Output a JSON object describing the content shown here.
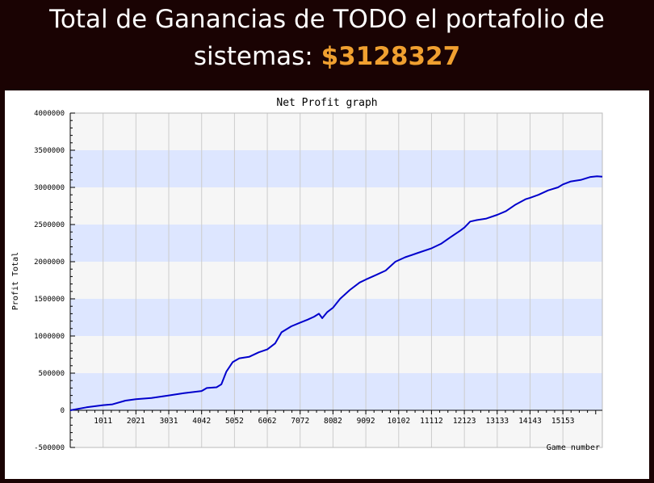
{
  "header": {
    "title_prefix": "Total de Ganancias de TODO el portafolio de",
    "title_line2_prefix": "sistemas:",
    "amount": "$3128327",
    "text_color": "#ffffff",
    "amount_color": "#f0a030",
    "background": "#1a0303"
  },
  "chart_data": {
    "type": "line",
    "title": "Net Profit graph",
    "xlabel": "Game number",
    "ylabel": "Profit Total",
    "xlim": [
      1,
      16365
    ],
    "ylim": [
      -500000,
      4000000
    ],
    "x_ticks": [
      "1011",
      "2021",
      "3031",
      "4042",
      "5052",
      "6062",
      "7072",
      "8082",
      "9092",
      "10102",
      "11112",
      "12123",
      "13133",
      "14143",
      "15153"
    ],
    "x_tick_values": [
      1011,
      2021,
      3031,
      4042,
      5052,
      6062,
      7072,
      8082,
      9092,
      10102,
      11112,
      12123,
      13133,
      14143,
      15153
    ],
    "y_ticks": [
      "4000000",
      "3500000",
      "3000000",
      "2500000",
      "2000000",
      "1500000",
      "1000000",
      "500000",
      "0",
      "-500000"
    ],
    "y_tick_values": [
      4000000,
      3500000,
      3000000,
      2500000,
      2000000,
      1500000,
      1000000,
      500000,
      0,
      -500000
    ],
    "grid": true,
    "band_colors": [
      "#dde6ff",
      "#f6f6f6"
    ],
    "line_color": "#0000cc",
    "series": [
      {
        "x": [
          1,
          500,
          1011,
          1300,
          1700,
          2021,
          2500,
          3031,
          3500,
          4042,
          4200,
          4500,
          4650,
          4800,
          5000,
          5200,
          5500,
          5800,
          6062,
          6300,
          6500,
          6800,
          7072,
          7300,
          7500,
          7650,
          7750,
          7900,
          8082,
          8300,
          8600,
          8900,
          9092,
          9400,
          9700,
          10000,
          10300,
          10700,
          11112,
          11400,
          11700,
          12000,
          12123,
          12300,
          12500,
          12800,
          13133,
          13400,
          13700,
          14000,
          14143,
          14400,
          14700,
          15000,
          15153,
          15400,
          15700,
          16000,
          16200,
          16365
        ],
        "y": [
          0,
          40000,
          70000,
          80000,
          130000,
          150000,
          165000,
          200000,
          230000,
          260000,
          300000,
          310000,
          350000,
          520000,
          650000,
          700000,
          720000,
          780000,
          820000,
          900000,
          1050000,
          1130000,
          1180000,
          1220000,
          1260000,
          1300000,
          1240000,
          1320000,
          1380000,
          1500000,
          1620000,
          1720000,
          1760000,
          1820000,
          1880000,
          2000000,
          2060000,
          2120000,
          2180000,
          2240000,
          2330000,
          2420000,
          2460000,
          2540000,
          2560000,
          2580000,
          2630000,
          2680000,
          2770000,
          2840000,
          2860000,
          2900000,
          2960000,
          3000000,
          3040000,
          3080000,
          3100000,
          3140000,
          3150000,
          3145000
        ]
      }
    ]
  }
}
